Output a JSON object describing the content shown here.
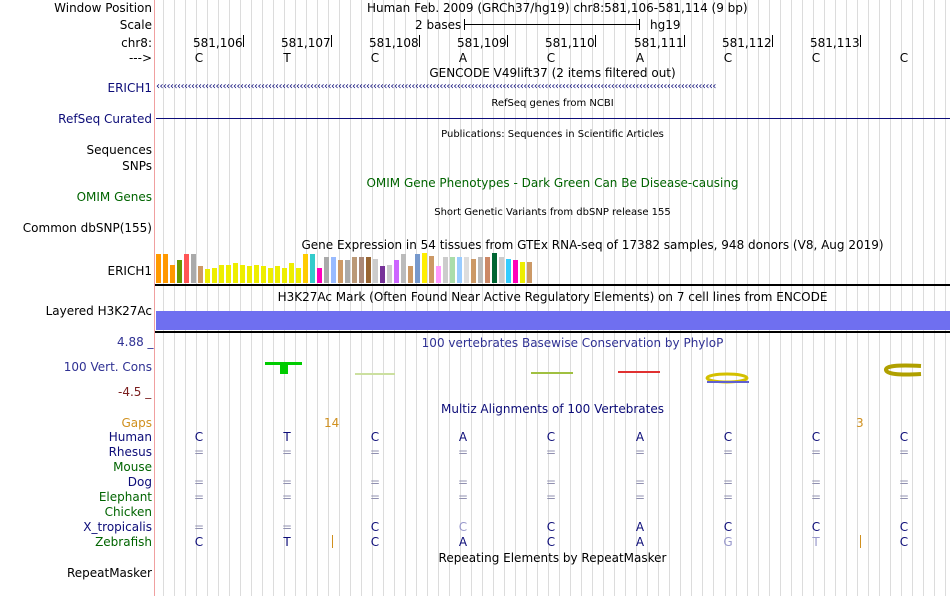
{
  "header": {
    "window_position_label": "Window Position",
    "window_position_text": "Human Feb. 2009 (GRCh37/hg19)   chr8:581,106-581,114 (9 bp)",
    "scale_label": "Scale",
    "scale_text": "2 bases",
    "assembly": "hg19",
    "chrom_label": "chr8:",
    "positions": [
      "581,106",
      "581,107",
      "581,108",
      "581,109",
      "581,110",
      "581,111",
      "581,112",
      "581,113"
    ],
    "strand_label": "--->"
  },
  "sequence": [
    "C",
    "T",
    "C",
    "A",
    "C",
    "A",
    "C",
    "C",
    "C"
  ],
  "tracks": {
    "gencode": {
      "title": "GENCODE V49lift37 (2 items filtered out)",
      "label": "ERICH1",
      "color": "#0c0c78"
    },
    "refseq": {
      "title": "RefSeq genes from NCBI",
      "label": "RefSeq Curated",
      "color": "#0c0c78"
    },
    "publications": {
      "title": "Publications: Sequences in Scientific Articles",
      "label1": "Sequences",
      "label2": "SNPs"
    },
    "omim": {
      "title": "OMIM Gene Phenotypes - Dark Green Can Be Disease-causing",
      "label": "OMIM Genes",
      "color": "#006400"
    },
    "dbsnp": {
      "title": "Short Genetic Variants from dbSNP release 155",
      "label": "Common dbSNP(155)"
    },
    "gtex": {
      "title": "Gene Expression in 54 tissues from GTEx RNA-seq of 17382 samples, 948 donors (V8, Aug 2019)",
      "label": "ERICH1",
      "bar_colors": [
        "#ff9900",
        "#ff9900",
        "#ff9900",
        "#669900",
        "#ff5555",
        "#aaaaaa",
        "#cc9966",
        "#eeee00",
        "#eeee00",
        "#eeee00",
        "#eeee00",
        "#eeee00",
        "#eeee00",
        "#eeee00",
        "#eeee00",
        "#eeee00",
        "#eeee00",
        "#eeee00",
        "#eeee00",
        "#eeee00",
        "#eeee00",
        "#ffcc00",
        "#33cccc",
        "#ff00bb",
        "#aaaaaa",
        "#99bbff",
        "#cc9966",
        "#aaaaaa",
        "#bb9977",
        "#aa8877",
        "#996633",
        "#cccccc",
        "#773399",
        "#cccccc",
        "#cc66ff",
        "#bbbbbb",
        "#cc9966",
        "#7799cc",
        "#ffee00",
        "#cc9966",
        "#ff99ff",
        "#cccccc",
        "#aaddaa",
        "#99ccff",
        "#dddddd",
        "#cc9966",
        "#bbbbbb",
        "#cc8866",
        "#006633",
        "#cccccc",
        "#33ccff",
        "#ff00bb",
        "#eeee00",
        "#cc9966"
      ],
      "bar_values": [
        0.95,
        0.95,
        0.6,
        0.75,
        0.95,
        0.95,
        0.55,
        0.45,
        0.5,
        0.6,
        0.6,
        0.65,
        0.6,
        0.55,
        0.6,
        0.55,
        0.5,
        0.55,
        0.5,
        0.65,
        0.5,
        0.95,
        0.95,
        0.5,
        0.85,
        0.85,
        0.75,
        0.75,
        0.85,
        0.85,
        0.85,
        0.8,
        0.55,
        0.6,
        0.75,
        0.95,
        0.55,
        0.95,
        1.0,
        0.9,
        0.55,
        0.85,
        0.85,
        0.85,
        0.85,
        0.8,
        0.85,
        0.85,
        1.0,
        0.85,
        0.8,
        0.75,
        0.7,
        0.7
      ]
    },
    "h3k27ac": {
      "title": "H3K27Ac Mark (Often Found Near Active Regulatory Elements) on 7 cell lines from ENCODE",
      "label": "Layered H3K27Ac",
      "color": "#6f6ff0"
    },
    "phylop": {
      "title": "100 vertebrates Basewise Conservation by PhyloP",
      "label": "100 Vert. Cons",
      "max_label": "4.88 _",
      "min_label": "-4.5 _",
      "color": "#2f3193"
    },
    "multiz": {
      "title": "Multiz Alignments of 100 Vertebrates",
      "gaps_label": "Gaps",
      "gap_counts": [
        "14",
        "3"
      ],
      "species": [
        {
          "name": "Human",
          "color": "#0c0c78",
          "bases": [
            "C",
            "T",
            "C",
            "A",
            "C",
            "A",
            "C",
            "C",
            "C"
          ]
        },
        {
          "name": "Rhesus",
          "color": "#0c0c78",
          "bases": [
            "=",
            "=",
            "=",
            "=",
            "=",
            "=",
            "=",
            "=",
            "="
          ]
        },
        {
          "name": "Mouse",
          "color": "#006400",
          "bases": [
            "",
            "",
            "",
            "",
            "",
            "",
            "",
            "",
            ""
          ]
        },
        {
          "name": "Dog",
          "color": "#0c0c78",
          "bases": [
            "=",
            "=",
            "=",
            "=",
            "=",
            "=",
            "=",
            "=",
            "="
          ]
        },
        {
          "name": "Elephant",
          "color": "#006400",
          "bases": [
            "=",
            "=",
            "=",
            "=",
            "=",
            "=",
            "=",
            "=",
            "="
          ]
        },
        {
          "name": "Chicken",
          "color": "#006400",
          "bases": [
            "",
            "",
            "",
            "",
            "",
            "",
            "",
            "",
            ""
          ]
        },
        {
          "name": "X_tropicalis",
          "color": "#0c0c78",
          "bases": [
            "=",
            "=",
            "C",
            "C",
            "C",
            "A",
            "C",
            "C",
            "C"
          ]
        },
        {
          "name": "Zebrafish",
          "color": "#006400",
          "bases": [
            "C",
            "T",
            "C",
            "A",
            "C",
            "A",
            "G",
            "T",
            "C"
          ]
        }
      ]
    },
    "repeatmasker": {
      "title": "Repeating Elements by RepeatMasker",
      "label": "RepeatMasker"
    }
  },
  "colors": {
    "navy": "#0c0c78",
    "green": "#006400",
    "orange": "#d0901e",
    "maroon": "#7a1e1e",
    "sidebar_divider": "#f0a0a0"
  }
}
